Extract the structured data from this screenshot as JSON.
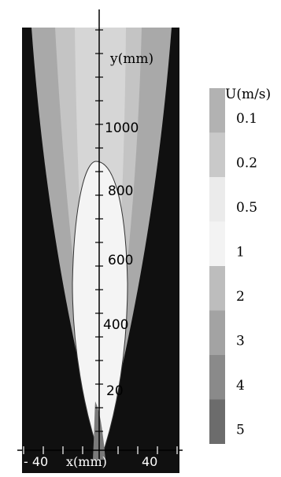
{
  "chart_data": {
    "type": "heatmap",
    "title": "",
    "xlabel": "x(mm)",
    "ylabel": "y(mm)",
    "x_ticks": [
      "- 40",
      "40"
    ],
    "y_ticks": [
      "20",
      "400",
      "600",
      "800",
      "1000"
    ],
    "legend": {
      "title": "U(m/s)",
      "levels": [
        "0.1",
        "0.2",
        "0.5",
        "1",
        "2",
        "3",
        "4",
        "5"
      ],
      "colors": [
        "#b2b2b2",
        "#c9c9c9",
        "#ebebeb",
        "#f3f3f3",
        "#bdbdbd",
        "#a3a3a3",
        "#8a8a8a",
        "#6c6c6c"
      ]
    }
  },
  "colors": {
    "background_field": "#101010",
    "outer_plume": "#a9a9a9",
    "mid_plume": "#c4c4c4",
    "inner_plume": "#d6d6d6",
    "core": "#f4f4f4",
    "nozzle": "#7a7a7a",
    "axis": "#000000"
  }
}
